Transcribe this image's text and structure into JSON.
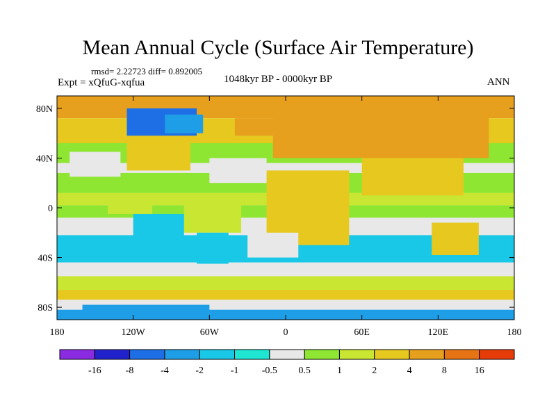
{
  "chart_data": {
    "type": "heatmap",
    "title": "Mean Annual Cycle (Surface Air Temperature)",
    "stats_text": "rmsd= 2.22723 diff= 0.892005",
    "experiment_text": "Expt = xQfuG-xqfua",
    "period_text": "1048kyr BP - 0000kyr BP",
    "season_text": "ANN",
    "x_range": [
      -180,
      180
    ],
    "y_range": [
      -90,
      90
    ],
    "x_ticks": [
      {
        "value": -180,
        "label": "180"
      },
      {
        "value": -120,
        "label": "120W"
      },
      {
        "value": -60,
        "label": "60W"
      },
      {
        "value": 0,
        "label": "0"
      },
      {
        "value": 60,
        "label": "60E"
      },
      {
        "value": 120,
        "label": "120E"
      },
      {
        "value": 180,
        "label": "180"
      }
    ],
    "y_ticks": [
      {
        "value": 80,
        "label": "80N"
      },
      {
        "value": 40,
        "label": "40N"
      },
      {
        "value": 0,
        "label": "0"
      },
      {
        "value": -40,
        "label": "40S"
      },
      {
        "value": -80,
        "label": "80S"
      }
    ],
    "colorbar": {
      "colors": [
        "#8a2be2",
        "#2222cc",
        "#1e6fe6",
        "#1e9ee6",
        "#19c8e6",
        "#1ee6d2",
        "#e8e8e8",
        "#8ee632",
        "#c8e632",
        "#e6c81e",
        "#e6a01e",
        "#e67314",
        "#e63c0a"
      ],
      "labels": [
        "-16",
        "-8",
        "-4",
        "-2",
        "-1",
        "-0.5",
        "0.5",
        "1",
        "2",
        "4",
        "8",
        "16"
      ]
    },
    "bands": [
      {
        "lat_top": 90,
        "lat_bottom": 72,
        "value": 8
      },
      {
        "lat_top": 72,
        "lat_bottom": 52,
        "value": 4
      },
      {
        "lat_top": 52,
        "lat_bottom": 36,
        "value": 1
      },
      {
        "lat_top": 36,
        "lat_bottom": 28,
        "value": 0
      },
      {
        "lat_top": 28,
        "lat_bottom": 12,
        "value": 1
      },
      {
        "lat_top": 12,
        "lat_bottom": 2,
        "value": 2
      },
      {
        "lat_top": 2,
        "lat_bottom": -8,
        "value": 1
      },
      {
        "lat_top": -8,
        "lat_bottom": -22,
        "value": 0
      },
      {
        "lat_top": -22,
        "lat_bottom": -44,
        "value": -1
      },
      {
        "lat_top": -44,
        "lat_bottom": -55,
        "value": 0
      },
      {
        "lat_top": -55,
        "lat_bottom": -66,
        "value": 2
      },
      {
        "lat_top": -66,
        "lat_bottom": -74,
        "value": 4
      },
      {
        "lat_top": -74,
        "lat_bottom": -82,
        "value": 0
      },
      {
        "lat_top": -82,
        "lat_bottom": -90,
        "value": -2
      }
    ],
    "regions": [
      {
        "name": "eurasia-warm",
        "value": 8,
        "lon": [
          -10,
          160
        ],
        "lat": [
          40,
          80
        ]
      },
      {
        "name": "north-atlantic-warm",
        "value": 8,
        "lon": [
          -40,
          10
        ],
        "lat": [
          58,
          72
        ]
      },
      {
        "name": "africa-warm",
        "value": 4,
        "lon": [
          -15,
          50
        ],
        "lat": [
          -30,
          30
        ]
      },
      {
        "name": "south-asia-warm",
        "value": 4,
        "lon": [
          60,
          140
        ],
        "lat": [
          10,
          40
        ]
      },
      {
        "name": "north-america-warm",
        "value": 4,
        "lon": [
          -125,
          -75
        ],
        "lat": [
          30,
          55
        ]
      },
      {
        "name": "australia-warm",
        "value": 4,
        "lon": [
          115,
          152
        ],
        "lat": [
          -38,
          -12
        ]
      },
      {
        "name": "south-america-warm",
        "value": 2,
        "lon": [
          -80,
          -35
        ],
        "lat": [
          -20,
          10
        ]
      },
      {
        "name": "canada-cold",
        "value": -4,
        "lon": [
          -125,
          -70
        ],
        "lat": [
          58,
          80
        ]
      },
      {
        "name": "baffin-cold",
        "value": -2,
        "lon": [
          -95,
          -65
        ],
        "lat": [
          60,
          75
        ]
      },
      {
        "name": "ne-pacific-neutral",
        "value": 0,
        "lon": [
          -170,
          -130
        ],
        "lat": [
          25,
          45
        ]
      },
      {
        "name": "n-atlantic-neutral",
        "value": 0,
        "lon": [
          -60,
          -15
        ],
        "lat": [
          20,
          40
        ]
      },
      {
        "name": "se-pacific-cool",
        "value": -1,
        "lon": [
          -120,
          -80
        ],
        "lat": [
          -30,
          -5
        ]
      },
      {
        "name": "s-america-cool",
        "value": -1,
        "lon": [
          -70,
          -45
        ],
        "lat": [
          -45,
          -20
        ]
      },
      {
        "name": "s-atlantic-neutral",
        "value": 0,
        "lon": [
          -30,
          10
        ],
        "lat": [
          -40,
          -20
        ]
      },
      {
        "name": "pacific-warm-spot",
        "value": 2,
        "lon": [
          -140,
          -105
        ],
        "lat": [
          -5,
          10
        ]
      },
      {
        "name": "antarctica-cold",
        "value": -2,
        "lon": [
          -160,
          -60
        ],
        "lat": [
          -86,
          -78
        ]
      }
    ]
  }
}
